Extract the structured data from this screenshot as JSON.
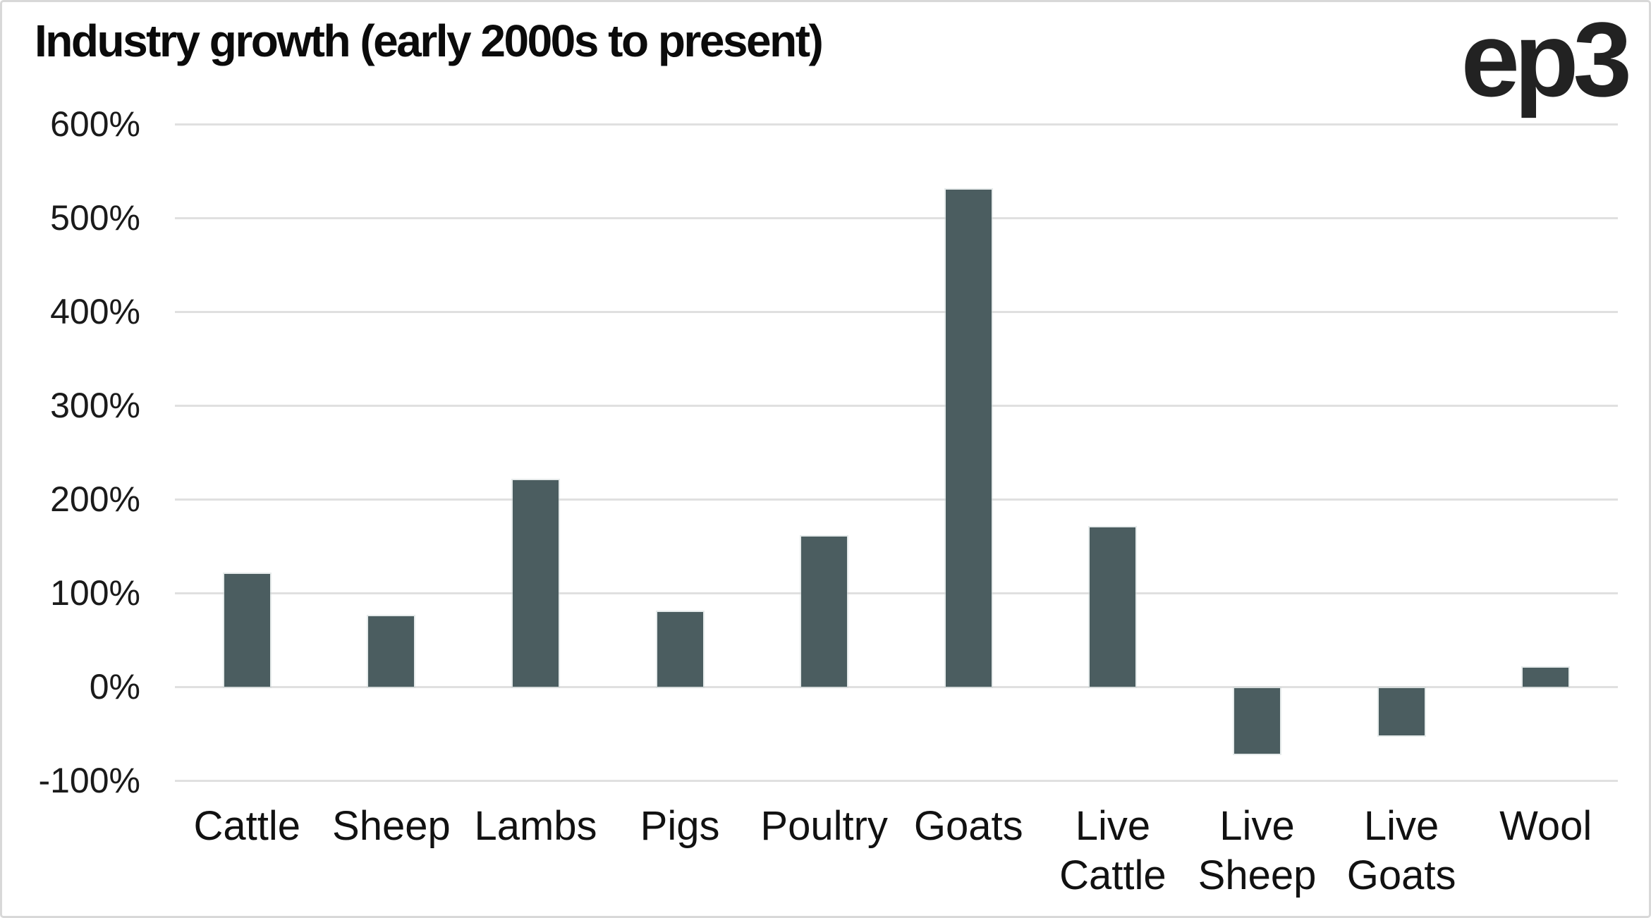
{
  "branding": {
    "logo_text": "ep3"
  },
  "chart_data": {
    "type": "bar",
    "title": "Industry growth (early 2000s to present)",
    "categories": [
      "Cattle",
      "Sheep",
      "Lambs",
      "Pigs",
      "Poultry",
      "Goats",
      "Live Cattle",
      "Live Sheep",
      "Live Goats",
      "Wool"
    ],
    "category_display_lines": [
      [
        "Cattle"
      ],
      [
        "Sheep"
      ],
      [
        "Lambs"
      ],
      [
        "Pigs"
      ],
      [
        "Poultry"
      ],
      [
        "Goats"
      ],
      [
        "Live",
        "Cattle"
      ],
      [
        "Live",
        "Sheep"
      ],
      [
        "Live",
        "Goats"
      ],
      [
        "Wool"
      ]
    ],
    "values": [
      120,
      75,
      220,
      80,
      160,
      530,
      170,
      -70,
      -50,
      20
    ],
    "unit": "%",
    "ylabel": "",
    "xlabel": "",
    "ylim": [
      -100,
      600
    ],
    "ytick_step": 100,
    "ytick_labels": [
      "600%",
      "500%",
      "400%",
      "300%",
      "200%",
      "100%",
      "0%",
      "-100%"
    ],
    "grid": true,
    "legend": false,
    "bar_color": "#4b5d60",
    "gridline_color": "#e0e0e0",
    "text_color": "#1a1a1a",
    "background_color": "#ffffff",
    "border_color": "#d8d8d8"
  }
}
